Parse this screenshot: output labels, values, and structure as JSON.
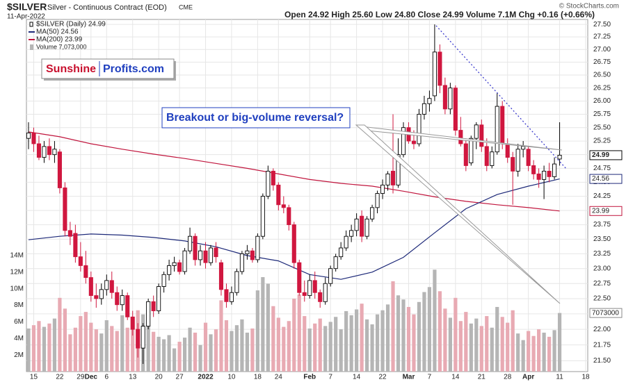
{
  "chart_data": {
    "type": "candlestick",
    "symbol": "$SILVER",
    "name": "Silver - Continuous Contract (EOD)",
    "exchange": "CME",
    "date": "11-Apr-2022",
    "quote": "Open 24.92 High 25.60 Low 24.80 Close 24.99 Volume 7.1M Chg +0.16 (+0.66%)",
    "copyright": "© StockCharts.com",
    "legend": [
      "$SILVER (Daily) 24.99",
      "MA(50) 24.56",
      "MA(200) 23.99",
      "Volume 7,073,000"
    ],
    "logo": [
      "Sunshine",
      "Profits.com"
    ],
    "annotation": "Breakout or big-volume reversal?",
    "open": [
      25.3,
      25.4,
      25.2,
      24.95,
      25.15,
      25.0,
      25.05,
      24.4,
      23.65,
      23.6,
      23.2,
      23.05,
      22.85,
      22.55,
      22.5,
      22.65,
      22.8,
      22.6,
      22.4,
      22.55,
      22.2,
      22.0,
      21.7,
      22.05,
      22.45,
      22.3,
      22.7,
      22.9,
      23.05,
      23.1,
      22.95,
      23.3,
      23.55,
      23.15,
      23.3,
      23.1,
      23.35,
      23.1,
      22.65,
      22.45,
      22.6,
      22.95,
      23.25,
      23.3,
      23.15,
      23.55,
      24.25,
      24.7,
      24.45,
      24.1,
      24.05,
      23.75,
      23.1,
      22.6,
      22.55,
      22.8,
      22.6,
      22.45,
      22.75,
      23.0,
      23.2,
      23.35,
      23.55,
      23.65,
      23.9,
      23.55,
      23.85,
      24.05,
      24.3,
      24.45,
      24.7,
      24.45,
      25.0,
      25.5,
      25.25,
      25.2,
      25.75,
      25.95,
      26.1,
      26.95,
      26.3,
      25.85,
      26.25,
      25.45,
      25.2,
      24.85,
      25.3,
      25.55,
      25.15,
      24.8,
      25.05,
      25.9,
      25.2,
      24.95,
      24.7,
      25.1,
      25.1,
      24.8,
      24.65,
      24.55,
      24.7,
      24.6,
      24.92
    ],
    "high": [
      25.6,
      25.5,
      25.35,
      25.25,
      25.3,
      25.25,
      25.1,
      24.5,
      23.8,
      23.75,
      23.45,
      23.3,
      22.95,
      22.75,
      22.75,
      22.9,
      22.95,
      22.7,
      22.65,
      22.6,
      22.3,
      22.1,
      22.1,
      22.5,
      22.55,
      22.75,
      22.95,
      23.15,
      23.2,
      23.15,
      23.35,
      23.7,
      23.6,
      23.4,
      23.45,
      23.4,
      23.45,
      23.15,
      22.75,
      22.7,
      23.0,
      23.3,
      23.4,
      23.35,
      23.6,
      24.3,
      24.8,
      24.75,
      24.5,
      24.25,
      24.1,
      23.8,
      23.15,
      22.8,
      22.9,
      22.95,
      22.65,
      22.85,
      23.05,
      23.25,
      23.45,
      23.65,
      23.75,
      23.95,
      24.0,
      23.9,
      24.1,
      24.35,
      24.55,
      24.7,
      25.75,
      25.3,
      25.6,
      25.6,
      25.45,
      25.85,
      26.1,
      26.2,
      27.5,
      27.1,
      26.45,
      26.35,
      26.3,
      25.7,
      25.3,
      25.35,
      25.6,
      25.65,
      25.3,
      25.15,
      26.15,
      26.0,
      25.3,
      25.05,
      25.2,
      25.25,
      25.15,
      24.9,
      24.75,
      24.8,
      24.85,
      24.95,
      25.6
    ],
    "low": [
      25.1,
      25.05,
      24.9,
      24.85,
      24.9,
      24.85,
      24.3,
      23.55,
      23.4,
      23.1,
      22.95,
      22.75,
      22.45,
      22.35,
      22.4,
      22.55,
      22.5,
      22.3,
      22.3,
      22.15,
      21.9,
      21.55,
      21.45,
      22.0,
      22.2,
      22.25,
      22.6,
      22.8,
      22.95,
      22.9,
      22.9,
      23.25,
      23.05,
      23.05,
      23.0,
      23.05,
      23.1,
      22.55,
      22.35,
      22.4,
      22.55,
      22.9,
      23.15,
      23.1,
      23.1,
      23.5,
      24.2,
      24.35,
      24.0,
      23.95,
      23.65,
      23.0,
      22.55,
      22.45,
      22.5,
      22.5,
      22.35,
      22.4,
      22.7,
      22.95,
      23.15,
      23.3,
      23.45,
      23.55,
      23.45,
      23.5,
      23.8,
      23.95,
      24.2,
      24.35,
      24.3,
      24.4,
      24.95,
      25.2,
      25.1,
      25.15,
      25.65,
      25.8,
      26.0,
      26.15,
      25.75,
      25.75,
      25.35,
      25.15,
      24.7,
      24.8,
      25.1,
      25.05,
      24.7,
      24.75,
      25.0,
      25.1,
      24.85,
      24.1,
      24.6,
      24.95,
      24.7,
      24.55,
      24.4,
      24.2,
      24.5,
      24.55,
      24.8
    ],
    "close": [
      25.4,
      25.2,
      24.95,
      25.15,
      25.0,
      25.1,
      24.4,
      23.65,
      23.55,
      23.2,
      23.05,
      22.85,
      22.55,
      22.5,
      22.65,
      22.8,
      22.6,
      22.4,
      22.55,
      22.2,
      22.0,
      21.7,
      22.05,
      22.45,
      22.3,
      22.7,
      22.9,
      23.05,
      23.1,
      22.95,
      23.3,
      23.55,
      23.15,
      23.3,
      23.1,
      23.35,
      23.2,
      22.65,
      22.45,
      22.6,
      22.95,
      23.25,
      23.3,
      23.15,
      23.55,
      24.25,
      24.7,
      24.45,
      24.1,
      24.05,
      23.75,
      23.1,
      22.6,
      22.55,
      22.8,
      22.6,
      22.45,
      22.75,
      23.0,
      23.2,
      23.35,
      23.55,
      23.65,
      23.85,
      23.55,
      23.85,
      24.05,
      24.3,
      24.45,
      24.65,
      24.45,
      25.0,
      25.5,
      25.25,
      25.2,
      25.75,
      25.95,
      26.05,
      26.95,
      26.3,
      25.85,
      26.25,
      25.45,
      25.2,
      24.8,
      25.3,
      25.55,
      25.15,
      24.8,
      25.05,
      25.9,
      25.2,
      24.95,
      24.7,
      25.1,
      25.15,
      24.8,
      24.65,
      24.55,
      24.7,
      24.6,
      24.83,
      24.99
    ],
    "volume": [
      5.2,
      5.6,
      6.1,
      5.4,
      5.8,
      6.4,
      8.9,
      7.6,
      4.5,
      5.3,
      6.7,
      7.2,
      5.9,
      5.1,
      4.6,
      6.2,
      5.5,
      4.9,
      6.8,
      5.3,
      6.5,
      7.4,
      6.9,
      5.7,
      4.8,
      4.2,
      3.9,
      4.4,
      2.8,
      3.6,
      4.1,
      5.3,
      4.7,
      3.2,
      5.9,
      4.5,
      5.1,
      8.6,
      6.2,
      4.9,
      5.6,
      6.3,
      4.7,
      5.2,
      9.8,
      11.4,
      10.6,
      7.9,
      6.5,
      5.4,
      6.1,
      8.8,
      9.3,
      6.7,
      5.2,
      5.8,
      6.4,
      5.5,
      6.0,
      6.6,
      5.1,
      7.3,
      6.8,
      7.5,
      8.2,
      6.3,
      5.7,
      6.9,
      7.4,
      8.1,
      10.9,
      9.2,
      8.7,
      7.8,
      6.9,
      8.4,
      9.6,
      10.2,
      12.3,
      9.7,
      7.6,
      6.5,
      8.9,
      6.1,
      7.2,
      5.8,
      6.4,
      5.5,
      6.7,
      5.3,
      7.8,
      6.6,
      5.9,
      7.4,
      4.6,
      3.8,
      4.9,
      4.3,
      5.1,
      4.7,
      4.2,
      5.0,
      7.073
    ],
    "volume_last_label": "7073000",
    "up_color": "#000000",
    "down_color": "#d0173f",
    "volume_up_color": "#b5b5b5",
    "volume_down_color": "#e8aab3",
    "ma50": {
      "color": "#1c2878",
      "x": [
        0,
        6,
        12,
        18,
        24,
        30,
        36,
        42,
        48,
        54,
        60,
        66,
        72,
        78,
        84,
        90,
        96,
        102
      ],
      "values": [
        23.49,
        23.55,
        23.59,
        23.57,
        23.53,
        23.47,
        23.37,
        23.22,
        23.13,
        22.9,
        22.82,
        22.94,
        23.19,
        23.61,
        24.03,
        24.28,
        24.43,
        24.56
      ]
    },
    "ma200": {
      "color": "#c0143c",
      "x": [
        0,
        6,
        12,
        18,
        24,
        30,
        36,
        42,
        48,
        54,
        60,
        66,
        72,
        78,
        84,
        90,
        96,
        102
      ],
      "values": [
        25.42,
        25.33,
        25.2,
        25.1,
        25.01,
        24.93,
        24.84,
        24.75,
        24.65,
        24.55,
        24.48,
        24.43,
        24.34,
        24.24,
        24.16,
        24.1,
        24.05,
        23.99
      ]
    },
    "log_scale": true,
    "grid": true,
    "xlim": [
      -0.4,
      107.4
    ],
    "xticks": [
      {
        "value": 1,
        "label": "15"
      },
      {
        "value": 6,
        "label": "22"
      },
      {
        "value": 10,
        "label": "29"
      },
      {
        "value": 12,
        "label": "Dec"
      },
      {
        "value": 15,
        "label": "6"
      },
      {
        "value": 20,
        "label": "13"
      },
      {
        "value": 25,
        "label": "20"
      },
      {
        "value": 29,
        "label": "27"
      },
      {
        "value": 34,
        "label": "2022"
      },
      {
        "value": 39,
        "label": "10"
      },
      {
        "value": 44,
        "label": "18"
      },
      {
        "value": 48,
        "label": "24"
      },
      {
        "value": 54,
        "label": "Feb"
      },
      {
        "value": 58,
        "label": "7"
      },
      {
        "value": 63,
        "label": "14"
      },
      {
        "value": 68,
        "label": "22"
      },
      {
        "value": 73,
        "label": "Mar"
      },
      {
        "value": 77,
        "label": "7"
      },
      {
        "value": 82,
        "label": "14"
      },
      {
        "value": 87,
        "label": "21"
      },
      {
        "value": 92,
        "label": "28"
      },
      {
        "value": 96,
        "label": "Apr"
      },
      {
        "value": 102,
        "label": "11"
      },
      {
        "value": 107,
        "label": "18"
      }
    ],
    "ylim": [
      21.33,
      27.6
    ],
    "yticks": [
      {
        "value": 21.5,
        "label": "21.50"
      },
      {
        "value": 21.75,
        "label": "21.75"
      },
      {
        "value": 22,
        "label": "22.00"
      },
      {
        "value": 22.25,
        "label": "22.25"
      },
      {
        "value": 22.5,
        "label": "22.50"
      },
      {
        "value": 22.75,
        "label": "22.75"
      },
      {
        "value": 23,
        "label": "23.00"
      },
      {
        "value": 23.25,
        "label": "23.25"
      },
      {
        "value": 23.5,
        "label": "23.50"
      },
      {
        "value": 23.75,
        "label": "23.75"
      },
      {
        "value": 24,
        "label": "24.00"
      },
      {
        "value": 24.25,
        "label": "24.25"
      },
      {
        "value": 24.5,
        "label": "24.50"
      },
      {
        "value": 24.75,
        "label": "24.75"
      },
      {
        "value": 25,
        "label": "25.00"
      },
      {
        "value": 25.25,
        "label": "25.25"
      },
      {
        "value": 25.5,
        "label": "25.50"
      },
      {
        "value": 25.75,
        "label": "25.75"
      },
      {
        "value": 26,
        "label": "26.00"
      },
      {
        "value": 26.25,
        "label": "26.25"
      },
      {
        "value": 26.5,
        "label": "26.50"
      },
      {
        "value": 26.75,
        "label": "26.75"
      },
      {
        "value": 27,
        "label": "27.00"
      },
      {
        "value": 27.25,
        "label": "27.25"
      },
      {
        "value": 27.5,
        "label": "27.50"
      }
    ],
    "volume_lim": [
      0,
      42.5
    ],
    "volume_ticks": [
      {
        "value": 2,
        "label": "2M"
      },
      {
        "value": 4,
        "label": "4M"
      },
      {
        "value": 6,
        "label": "6M"
      },
      {
        "value": 8,
        "label": "8M"
      },
      {
        "value": 10,
        "label": "10M"
      },
      {
        "value": 12,
        "label": "12M"
      },
      {
        "value": 14,
        "label": "14M"
      }
    ]
  }
}
